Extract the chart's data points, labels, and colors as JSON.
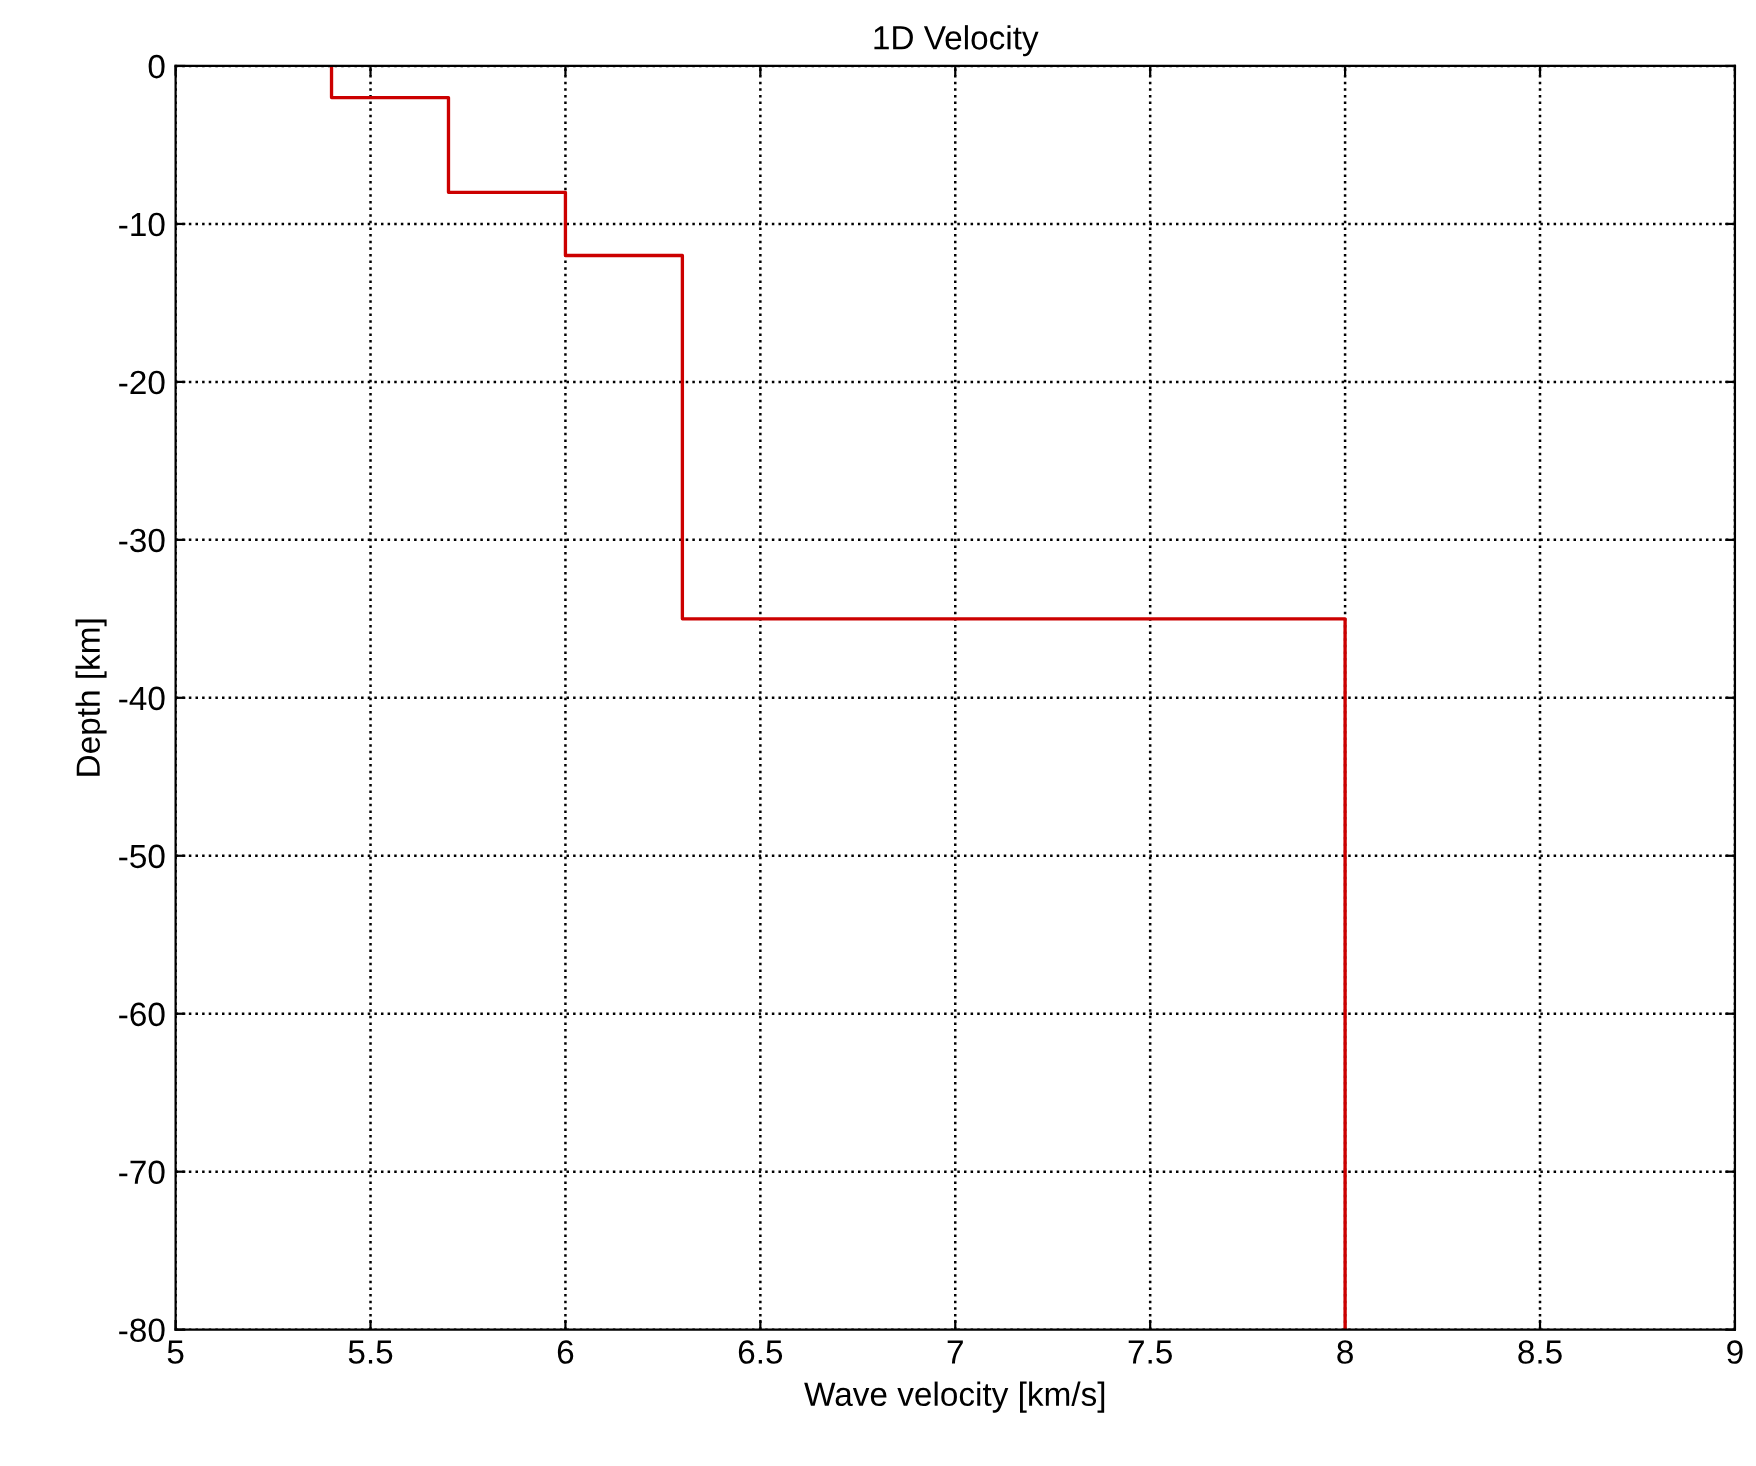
{
  "chart_data": {
    "type": "line",
    "title": "1D Velocity",
    "xlabel": "Wave velocity [km/s]",
    "ylabel": "Depth [km]",
    "series": [
      {
        "color": "#cc0000",
        "x": [
          5.4,
          5.4,
          5.7,
          5.7,
          6.0,
          6.0,
          6.3,
          6.3,
          8.0,
          8.0
        ],
        "values": [
          0,
          -2,
          -2,
          -8,
          -8,
          -12,
          -12,
          -35,
          -35,
          -80
        ]
      }
    ],
    "xlim": [
      5,
      9
    ],
    "xticks": [
      5,
      5.5,
      6,
      6.5,
      7,
      7.5,
      8,
      8.5,
      9
    ],
    "ylim": [
      -80,
      0
    ],
    "yticks": [
      -80,
      -70,
      -60,
      -50,
      -40,
      -30,
      -20,
      -10,
      0
    ],
    "grid": true,
    "line_style": "solid",
    "marker": "none"
  }
}
